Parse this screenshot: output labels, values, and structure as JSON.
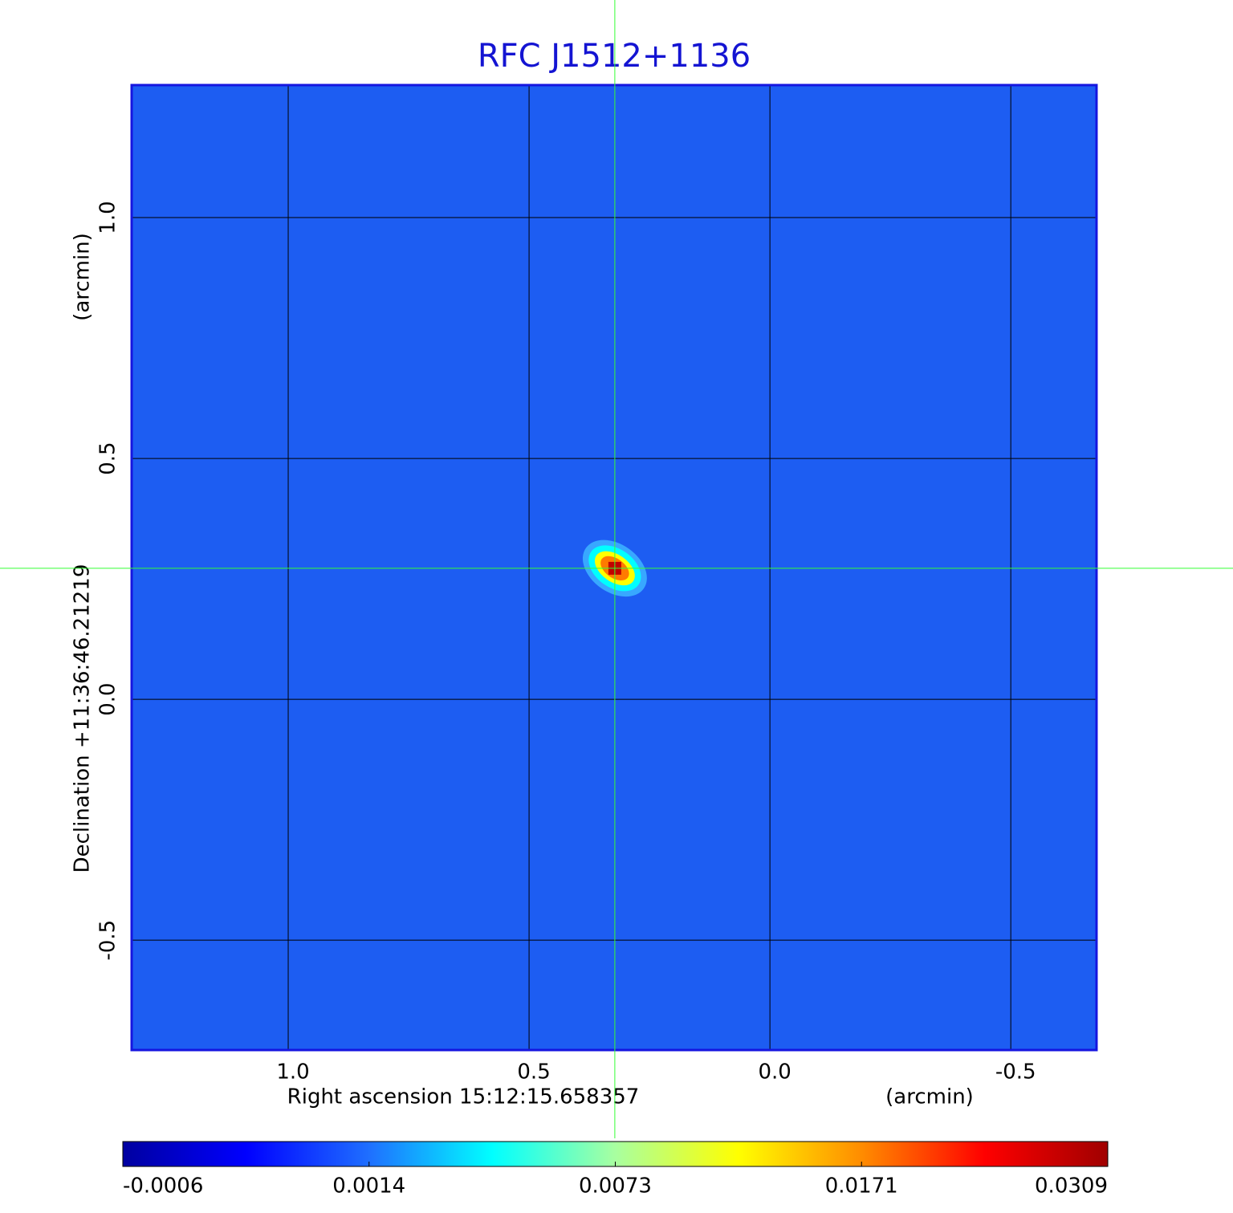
{
  "chart_data": {
    "type": "image",
    "title": "RFC J1512+1136",
    "x_label": "Right ascension  15:12:15.658357",
    "x_unit": "(arcmin)",
    "y_label": "Declination  +11:36:46.21219",
    "y_unit": "(arcmin)",
    "xlim": [
      1.325,
      -0.678
    ],
    "ylim": [
      -0.728,
      1.275
    ],
    "xticks": [
      {
        "value": 1,
        "label": "1.0"
      },
      0.5,
      {
        "value": 0,
        "label": "0.0"
      },
      -0.5
    ],
    "yticks": [
      {
        "value": 1,
        "label": "1.0"
      },
      0.5,
      {
        "value": 0,
        "label": "0.0"
      },
      -0.5
    ],
    "grid": true,
    "background_color": "#1d5df2",
    "source": {
      "x": 0.322,
      "y": 0.272,
      "peak": 0.0309
    },
    "crosshair_color": "#33ff33",
    "colorbar": {
      "ticks": [
        -0.0006,
        0.0014,
        0.0073,
        0.0171,
        0.0309
      ],
      "colors": [
        "#0000a0",
        "#0000ff",
        "#1f6fff",
        "#00ffff",
        "#a8ffa0",
        "#ffff00",
        "#ff8c00",
        "#ff0000",
        "#a00000"
      ]
    }
  }
}
